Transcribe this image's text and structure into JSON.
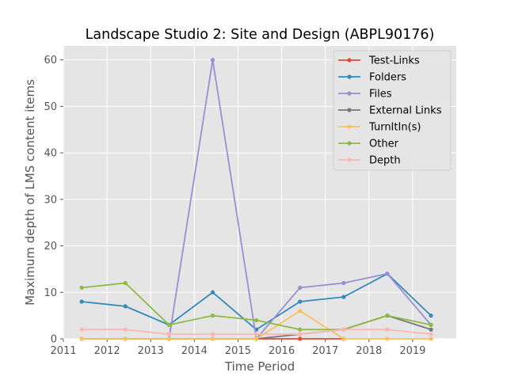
{
  "chart_data": {
    "type": "line",
    "title": "Landscape Studio 2: Site and Design (ABPL90176)",
    "xlabel": "Time Period",
    "ylabel": "Maximum depth of LMS content items",
    "xlim": [
      2011,
      2020
    ],
    "ylim": [
      0,
      63
    ],
    "xticks": [
      2011,
      2012,
      2013,
      2014,
      2015,
      2016,
      2017,
      2018,
      2019
    ],
    "yticks": [
      0,
      10,
      20,
      30,
      40,
      50,
      60
    ],
    "grid": true,
    "legend_position": "top-right",
    "x": [
      2011.42,
      2012.42,
      2013.42,
      2014.42,
      2015.42,
      2016.42,
      2017.42,
      2018.42,
      2019.42
    ],
    "series": [
      {
        "name": "Test-Links",
        "color": "#E24A33",
        "values": [
          0,
          0,
          0,
          0,
          0,
          0,
          0,
          null,
          null
        ]
      },
      {
        "name": "Folders",
        "color": "#348ABD",
        "values": [
          8,
          7,
          3,
          10,
          2,
          8,
          9,
          14,
          5
        ]
      },
      {
        "name": "Files",
        "color": "#988ED5",
        "values": [
          0,
          0,
          0,
          60,
          0,
          11,
          12,
          14,
          3
        ]
      },
      {
        "name": "External Links",
        "color": "#777777",
        "values": [
          null,
          null,
          null,
          null,
          0,
          1,
          2,
          5,
          2
        ]
      },
      {
        "name": "TurnItIn(s)",
        "color": "#FBC15E",
        "values": [
          0,
          0,
          0,
          0,
          0,
          6,
          0,
          0,
          0
        ]
      },
      {
        "name": "Other",
        "color": "#8EBA42",
        "values": [
          11,
          12,
          3,
          5,
          4,
          2,
          2,
          5,
          3
        ]
      },
      {
        "name": "Depth",
        "color": "#FFB5B8",
        "values": [
          2,
          2,
          1,
          1,
          1,
          1,
          2,
          2,
          1
        ]
      }
    ]
  }
}
